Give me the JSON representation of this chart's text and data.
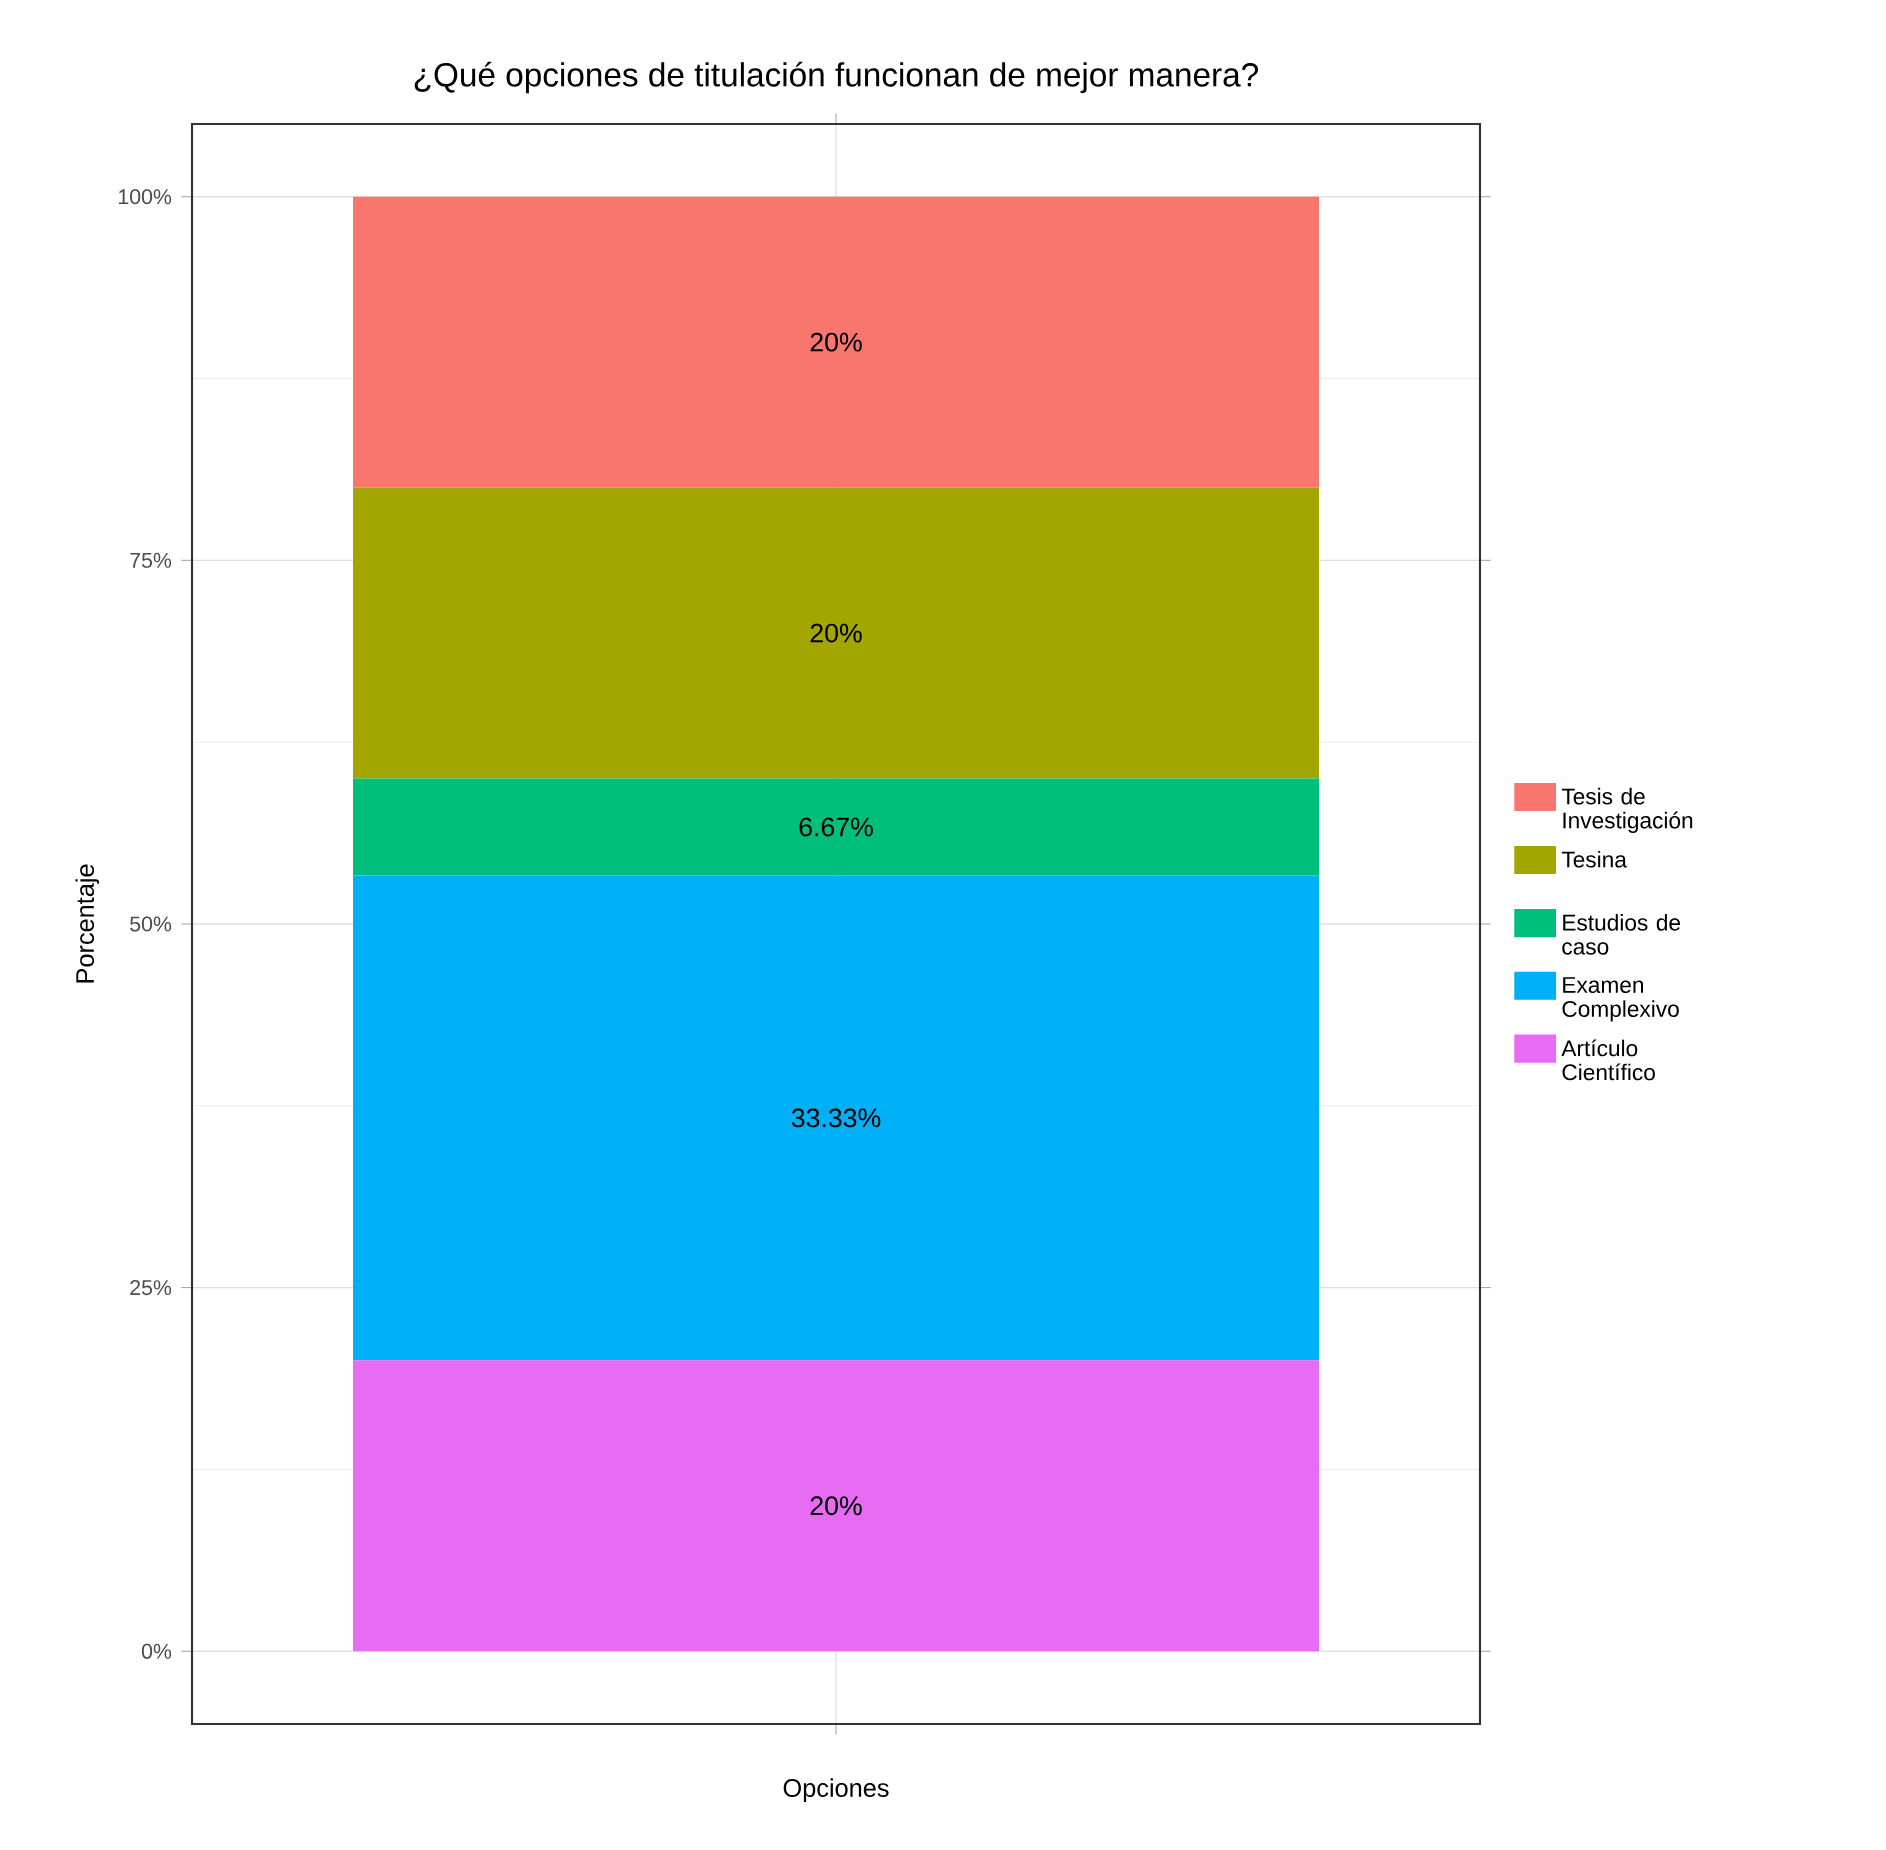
{
  "chart_data": {
    "type": "bar",
    "stacked": true,
    "title": "¿Qué opciones de titulación funcionan de mejor manera?",
    "xlabel": "Opciones",
    "ylabel": "Porcentaje",
    "categories": [
      null
    ],
    "series": [
      {
        "name": "Artículo Científico",
        "color": "#e76bf3",
        "values": [
          20
        ],
        "value_labels": [
          "20%"
        ]
      },
      {
        "name": "Examen Complexivo",
        "color": "#00b0f6",
        "values": [
          33.33
        ],
        "value_labels": [
          "33.33%"
        ]
      },
      {
        "name": "Estudios de caso",
        "color": "#00bf7d",
        "values": [
          6.67
        ],
        "value_labels": [
          "6.67%"
        ]
      },
      {
        "name": "Tesina",
        "color": "#a3a500",
        "values": [
          20
        ],
        "value_labels": [
          "20%"
        ]
      },
      {
        "name": "Tesis de Investigación",
        "color": "#f8766d",
        "values": [
          20
        ],
        "value_labels": [
          "20%"
        ]
      }
    ],
    "ylim": [
      -5,
      105
    ],
    "yticks": [
      {
        "value": 0,
        "label": "0%"
      },
      {
        "value": 25,
        "label": "25%"
      },
      {
        "value": 50,
        "label": "50%"
      },
      {
        "value": 75,
        "label": "75%"
      },
      {
        "value": 100,
        "label": "100%"
      }
    ],
    "grid": true,
    "legend": "right"
  }
}
